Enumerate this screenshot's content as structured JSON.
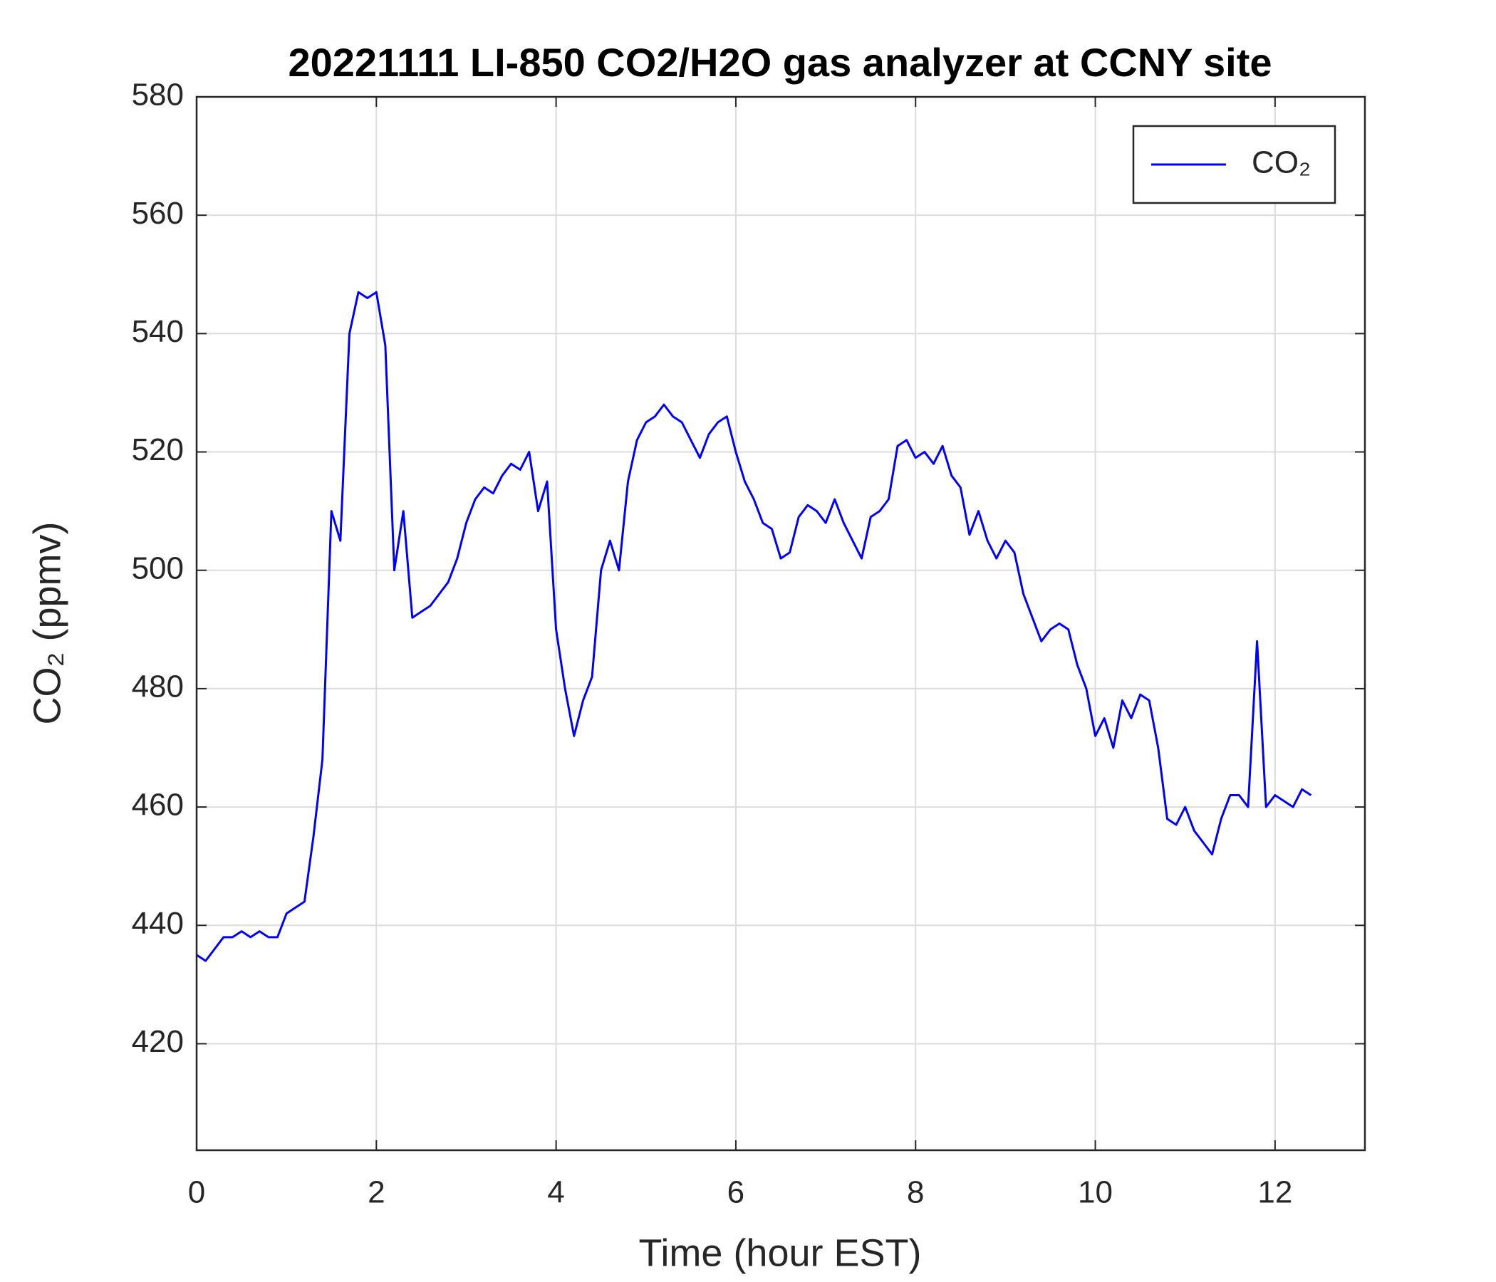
{
  "chart_data": {
    "type": "line",
    "title": "20221111 LI-850 CO2/H2O gas analyzer at CCNY site",
    "x_label": "Time (hour EST)",
    "y_label": "CO₂ (ppmv)",
    "x": [
      0,
      0.1,
      0.2,
      0.3,
      0.4,
      0.5,
      0.6,
      0.7,
      0.8,
      0.9,
      1,
      1.1,
      1.2,
      1.3,
      1.4,
      1.5,
      1.6,
      1.7,
      1.8,
      1.9,
      2,
      2.1,
      2.2,
      2.3,
      2.4,
      2.5,
      2.6,
      2.7,
      2.8,
      2.9,
      3,
      3.1,
      3.2,
      3.3,
      3.4,
      3.5,
      3.6,
      3.7,
      3.8,
      3.9,
      4,
      4.1,
      4.2,
      4.3,
      4.4,
      4.5,
      4.6,
      4.7,
      4.8,
      4.9,
      5,
      5.1,
      5.2,
      5.3,
      5.4,
      5.5,
      5.6,
      5.7,
      5.8,
      5.9,
      6,
      6.1,
      6.2,
      6.3,
      6.4,
      6.5,
      6.6,
      6.7,
      6.8,
      6.9,
      7,
      7.1,
      7.2,
      7.3,
      7.4,
      7.5,
      7.6,
      7.7,
      7.8,
      7.9,
      8,
      8.1,
      8.2,
      8.3,
      8.4,
      8.5,
      8.6,
      8.7,
      8.8,
      8.9,
      9,
      9.1,
      9.2,
      9.3,
      9.4,
      9.5,
      9.6,
      9.7,
      9.8,
      9.9,
      10,
      10.1,
      10.2,
      10.3,
      10.4,
      10.5,
      10.6,
      10.7,
      10.8,
      10.9,
      11,
      11.1,
      11.2,
      11.3,
      11.4,
      11.5,
      11.6,
      11.7,
      11.8,
      11.9,
      12,
      12.1,
      12.2,
      12.3,
      12.4
    ],
    "series": [
      {
        "name": "CO₂",
        "color": "#0000ff",
        "values": [
          435,
          434,
          436,
          438,
          438,
          439,
          438,
          439,
          438,
          438,
          442,
          443,
          444,
          455,
          468,
          510,
          505,
          540,
          547,
          546,
          547,
          538,
          500,
          510,
          492,
          493,
          494,
          496,
          498,
          502,
          508,
          512,
          514,
          513,
          516,
          518,
          517,
          520,
          510,
          515,
          490,
          480,
          472,
          478,
          482,
          500,
          505,
          500,
          515,
          522,
          525,
          526,
          528,
          526,
          525,
          522,
          519,
          523,
          525,
          526,
          520,
          515,
          512,
          508,
          507,
          502,
          503,
          509,
          511,
          510,
          508,
          512,
          508,
          505,
          502,
          509,
          510,
          512,
          521,
          522,
          519,
          520,
          518,
          521,
          516,
          514,
          506,
          510,
          505,
          502,
          505,
          503,
          496,
          492,
          488,
          490,
          491,
          490,
          484,
          480,
          472,
          475,
          470,
          478,
          475,
          479,
          478,
          470,
          458,
          457,
          460,
          456,
          454,
          452,
          458,
          462,
          462,
          460,
          488,
          460,
          462,
          461,
          460,
          463,
          462
        ]
      }
    ],
    "xlim": [
      0,
      13
    ],
    "ylim": [
      402,
      580
    ],
    "xticks": [
      0,
      2,
      4,
      6,
      8,
      10,
      12
    ],
    "yticks": [
      420,
      440,
      460,
      480,
      500,
      520,
      540,
      560,
      580
    ],
    "grid": true,
    "legend": "upper right"
  }
}
